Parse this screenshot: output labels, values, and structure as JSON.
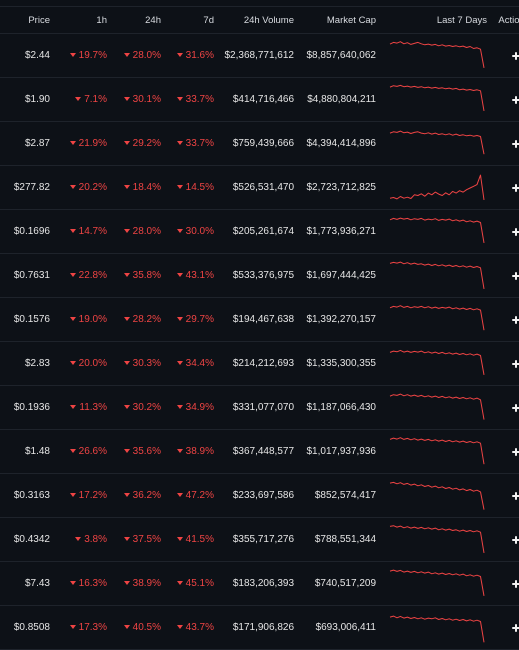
{
  "header": {
    "price": "Price",
    "h1": "1h",
    "h24": "24h",
    "d7": "7d",
    "volume": "24h Volume",
    "mcap": "Market Cap",
    "spark": "Last 7 Days",
    "actions": "Actions"
  },
  "colors": {
    "negative": "#ef4444",
    "sparkline": "#ef4444",
    "background": "#0d1117",
    "divider": "#1e232b"
  },
  "icons": {
    "add": "plus-icon",
    "more": "kebab-menu-icon",
    "change_down": "caret-down-icon"
  },
  "rows": [
    {
      "price": "$2.44",
      "h1": "19.7%",
      "h24": "28.0%",
      "d7": "31.6%",
      "volume": "$2,368,771,612",
      "mcap": "$8,857,640,062",
      "spark": [
        0.85,
        0.9,
        0.88,
        0.92,
        0.86,
        0.89,
        0.84,
        0.87,
        0.9,
        0.86,
        0.83,
        0.85,
        0.82,
        0.84,
        0.8,
        0.83,
        0.79,
        0.81,
        0.78,
        0.8,
        0.77,
        0.79,
        0.75,
        0.78,
        0.72,
        0.74,
        0.7,
        0.15
      ]
    },
    {
      "price": "$1.90",
      "h1": "7.1%",
      "h24": "30.1%",
      "d7": "33.7%",
      "volume": "$414,716,466",
      "mcap": "$4,880,804,211",
      "spark": [
        0.88,
        0.92,
        0.9,
        0.93,
        0.89,
        0.91,
        0.88,
        0.9,
        0.87,
        0.89,
        0.86,
        0.88,
        0.85,
        0.87,
        0.84,
        0.86,
        0.83,
        0.85,
        0.82,
        0.84,
        0.8,
        0.82,
        0.79,
        0.81,
        0.78,
        0.8,
        0.77,
        0.18
      ]
    },
    {
      "price": "$2.87",
      "h1": "21.9%",
      "h24": "29.2%",
      "d7": "33.7%",
      "volume": "$759,439,666",
      "mcap": "$4,394,414,896",
      "spark": [
        0.82,
        0.86,
        0.84,
        0.88,
        0.83,
        0.85,
        0.81,
        0.84,
        0.86,
        0.82,
        0.8,
        0.83,
        0.79,
        0.82,
        0.78,
        0.8,
        0.77,
        0.8,
        0.76,
        0.79,
        0.75,
        0.77,
        0.74,
        0.76,
        0.73,
        0.75,
        0.72,
        0.2
      ]
    },
    {
      "price": "$277.82",
      "h1": "20.2%",
      "h24": "18.4%",
      "d7": "14.5%",
      "volume": "$526,531,470",
      "mcap": "$2,723,712,825",
      "spark": [
        0.2,
        0.22,
        0.18,
        0.25,
        0.2,
        0.23,
        0.19,
        0.3,
        0.28,
        0.33,
        0.26,
        0.35,
        0.3,
        0.38,
        0.32,
        0.28,
        0.36,
        0.3,
        0.4,
        0.35,
        0.42,
        0.38,
        0.45,
        0.5,
        0.55,
        0.6,
        0.88,
        0.15
      ]
    },
    {
      "price": "$0.1696",
      "h1": "14.7%",
      "h24": "28.0%",
      "d7": "30.0%",
      "volume": "$205,261,674",
      "mcap": "$1,773,936,271",
      "spark": [
        0.86,
        0.9,
        0.87,
        0.91,
        0.88,
        0.9,
        0.86,
        0.89,
        0.87,
        0.9,
        0.85,
        0.88,
        0.86,
        0.89,
        0.84,
        0.87,
        0.85,
        0.88,
        0.83,
        0.86,
        0.82,
        0.85,
        0.8,
        0.83,
        0.79,
        0.82,
        0.78,
        0.18
      ]
    },
    {
      "price": "$0.7631",
      "h1": "22.8%",
      "h24": "35.8%",
      "d7": "43.1%",
      "volume": "$533,376,975",
      "mcap": "$1,697,444,425",
      "spark": [
        0.87,
        0.9,
        0.88,
        0.91,
        0.86,
        0.89,
        0.85,
        0.88,
        0.84,
        0.86,
        0.82,
        0.85,
        0.81,
        0.84,
        0.8,
        0.83,
        0.79,
        0.82,
        0.78,
        0.81,
        0.77,
        0.8,
        0.76,
        0.79,
        0.75,
        0.78,
        0.74,
        0.12
      ]
    },
    {
      "price": "$0.1576",
      "h1": "19.0%",
      "h24": "28.2%",
      "d7": "29.7%",
      "volume": "$194,467,638",
      "mcap": "$1,392,270,157",
      "spark": [
        0.86,
        0.9,
        0.88,
        0.92,
        0.87,
        0.9,
        0.86,
        0.89,
        0.87,
        0.9,
        0.86,
        0.89,
        0.85,
        0.88,
        0.84,
        0.87,
        0.85,
        0.88,
        0.83,
        0.86,
        0.82,
        0.85,
        0.81,
        0.84,
        0.8,
        0.83,
        0.79,
        0.2
      ]
    },
    {
      "price": "$2.83",
      "h1": "20.0%",
      "h24": "30.3%",
      "d7": "34.4%",
      "volume": "$214,212,693",
      "mcap": "$1,335,300,355",
      "spark": [
        0.84,
        0.88,
        0.86,
        0.9,
        0.85,
        0.88,
        0.84,
        0.87,
        0.85,
        0.88,
        0.83,
        0.86,
        0.82,
        0.85,
        0.81,
        0.84,
        0.8,
        0.83,
        0.79,
        0.82,
        0.78,
        0.81,
        0.77,
        0.8,
        0.76,
        0.79,
        0.75,
        0.18
      ]
    },
    {
      "price": "$0.1936",
      "h1": "11.3%",
      "h24": "30.2%",
      "d7": "34.9%",
      "volume": "$331,077,070",
      "mcap": "$1,187,066,430",
      "spark": [
        0.85,
        0.89,
        0.87,
        0.91,
        0.86,
        0.89,
        0.85,
        0.88,
        0.84,
        0.87,
        0.83,
        0.86,
        0.82,
        0.85,
        0.81,
        0.84,
        0.8,
        0.83,
        0.79,
        0.82,
        0.78,
        0.81,
        0.77,
        0.8,
        0.76,
        0.79,
        0.74,
        0.16
      ]
    },
    {
      "price": "$1.48",
      "h1": "26.6%",
      "h24": "35.6%",
      "d7": "38.9%",
      "volume": "$367,448,577",
      "mcap": "$1,017,937,936",
      "spark": [
        0.87,
        0.91,
        0.88,
        0.92,
        0.87,
        0.9,
        0.86,
        0.89,
        0.85,
        0.88,
        0.84,
        0.87,
        0.83,
        0.86,
        0.82,
        0.85,
        0.81,
        0.84,
        0.8,
        0.83,
        0.79,
        0.82,
        0.78,
        0.81,
        0.77,
        0.8,
        0.76,
        0.14
      ]
    },
    {
      "price": "$0.3163",
      "h1": "17.2%",
      "h24": "36.2%",
      "d7": "47.2%",
      "volume": "$233,697,586",
      "mcap": "$852,574,417",
      "spark": [
        0.88,
        0.9,
        0.86,
        0.89,
        0.84,
        0.87,
        0.82,
        0.85,
        0.8,
        0.83,
        0.78,
        0.81,
        0.76,
        0.79,
        0.74,
        0.77,
        0.72,
        0.75,
        0.7,
        0.73,
        0.68,
        0.71,
        0.66,
        0.69,
        0.64,
        0.67,
        0.62,
        0.1
      ]
    },
    {
      "price": "$0.4342",
      "h1": "3.8%",
      "h24": "37.5%",
      "d7": "41.5%",
      "volume": "$355,717,276",
      "mcap": "$788,551,344",
      "spark": [
        0.9,
        0.92,
        0.88,
        0.91,
        0.86,
        0.89,
        0.85,
        0.88,
        0.84,
        0.87,
        0.83,
        0.86,
        0.82,
        0.85,
        0.8,
        0.83,
        0.79,
        0.82,
        0.78,
        0.8,
        0.76,
        0.79,
        0.75,
        0.78,
        0.74,
        0.77,
        0.73,
        0.12
      ]
    },
    {
      "price": "$7.43",
      "h1": "16.3%",
      "h24": "38.9%",
      "d7": "45.1%",
      "volume": "$183,206,393",
      "mcap": "$740,517,209",
      "spark": [
        0.88,
        0.91,
        0.87,
        0.9,
        0.85,
        0.88,
        0.84,
        0.87,
        0.83,
        0.86,
        0.82,
        0.85,
        0.8,
        0.83,
        0.79,
        0.82,
        0.78,
        0.81,
        0.77,
        0.8,
        0.76,
        0.79,
        0.74,
        0.77,
        0.73,
        0.76,
        0.72,
        0.15
      ]
    },
    {
      "price": "$0.8508",
      "h1": "17.3%",
      "h24": "40.5%",
      "d7": "43.7%",
      "volume": "$171,906,826",
      "mcap": "$693,006,411",
      "spark": [
        0.82,
        0.85,
        0.8,
        0.84,
        0.79,
        0.82,
        0.78,
        0.81,
        0.77,
        0.8,
        0.76,
        0.79,
        0.77,
        0.8,
        0.75,
        0.78,
        0.74,
        0.77,
        0.73,
        0.76,
        0.72,
        0.75,
        0.71,
        0.74,
        0.7,
        0.73,
        0.69,
        0.08
      ]
    }
  ]
}
